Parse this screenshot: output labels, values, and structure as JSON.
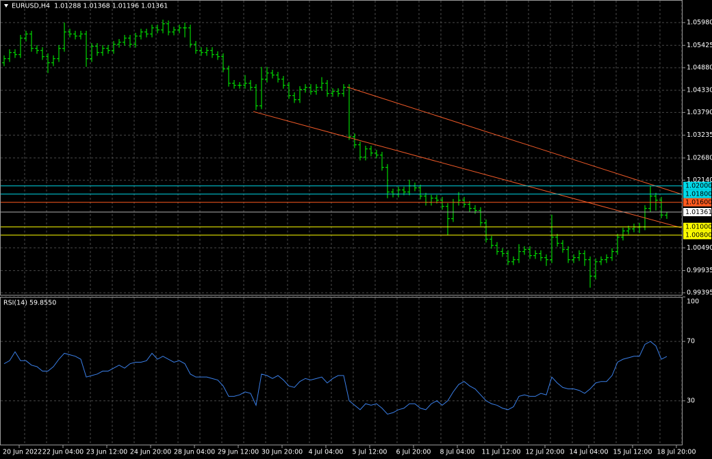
{
  "chart_data": [
    {
      "type": "ohlc",
      "title": "EURUSD,H4  1.01288 1.01368 1.01196 1.01361",
      "color": "#00ff00",
      "ylim": [
        0.99328,
        1.0653
      ],
      "yticks": [
        {
          "value": 1.0598,
          "label": "1.05980"
        },
        {
          "value": 1.05425,
          "label": "1.05425"
        },
        {
          "value": 1.0488,
          "label": "1.04880"
        },
        {
          "value": 1.0433,
          "label": "1.04330"
        },
        {
          "value": 1.0379,
          "label": "1.03790"
        },
        {
          "value": 1.03235,
          "label": "1.03235"
        },
        {
          "value": 1.0268,
          "label": "1.02680"
        },
        {
          "value": 1.0214,
          "label": "1.02140"
        },
        {
          "value": 1.0049,
          "label": "1.00490"
        },
        {
          "value": 0.99935,
          "label": "0.99935"
        },
        {
          "value": 0.99395,
          "label": "0.99395"
        }
      ],
      "grid": true,
      "levels": [
        {
          "value": 1.02,
          "label": "1.02000",
          "color": "#00d8e8"
        },
        {
          "value": 1.018,
          "label": "1.01800",
          "color": "#00d8e8"
        },
        {
          "value": 1.016,
          "label": "1.01600",
          "color": "#ff5a1f"
        },
        {
          "value": 1.01361,
          "label": "1.01361",
          "color": "#b0b0b0"
        },
        {
          "value": 1.01,
          "label": "1.01000",
          "color": "#ffff00"
        },
        {
          "value": 1.008,
          "label": "1.00800",
          "color": "#ffff00"
        }
      ],
      "trendlines": [
        {
          "x": [
            45.5,
            123.6
          ],
          "y": [
            1.0381,
            1.0098
          ],
          "color": "#f05a28"
        },
        {
          "x": [
            62.6,
            123.6
          ],
          "y": [
            1.0441,
            1.018
          ],
          "color": "#f05a28"
        }
      ],
      "bars": [
        [
          1.05,
          1.0518,
          1.0492,
          1.051
        ],
        [
          1.051,
          1.0533,
          1.0502,
          1.0525
        ],
        [
          1.0525,
          1.0533,
          1.0512,
          1.052
        ],
        [
          1.052,
          1.0568,
          1.0512,
          1.056
        ],
        [
          1.056,
          1.0578,
          1.0552,
          1.057
        ],
        [
          1.057,
          1.0578,
          1.0527,
          1.0535
        ],
        [
          1.0535,
          1.0543,
          1.0522,
          1.053
        ],
        [
          1.053,
          1.0538,
          1.0507,
          1.0515
        ],
        [
          1.0515,
          1.0523,
          1.0475,
          1.05
        ],
        [
          1.05,
          1.0518,
          1.0492,
          1.051
        ],
        [
          1.051,
          1.0543,
          1.0502,
          1.0535
        ],
        [
          1.0535,
          1.0598,
          1.0527,
          1.0575
        ],
        [
          1.0575,
          1.0583,
          1.0562,
          1.057
        ],
        [
          1.057,
          1.0578,
          1.0557,
          1.0565
        ],
        [
          1.0565,
          1.0578,
          1.0557,
          1.057
        ],
        [
          1.057,
          1.0578,
          1.049,
          1.051
        ],
        [
          1.051,
          1.0548,
          1.0502,
          1.054
        ],
        [
          1.054,
          1.0548,
          1.0517,
          1.0525
        ],
        [
          1.0525,
          1.0543,
          1.0517,
          1.0535
        ],
        [
          1.0535,
          1.0543,
          1.0522,
          1.053
        ],
        [
          1.053,
          1.0553,
          1.0522,
          1.0545
        ],
        [
          1.0545,
          1.0558,
          1.0537,
          1.055
        ],
        [
          1.055,
          1.0568,
          1.0542,
          1.056
        ],
        [
          1.056,
          1.0568,
          1.0537,
          1.0545
        ],
        [
          1.0545,
          1.0573,
          1.0537,
          1.0565
        ],
        [
          1.0565,
          1.0583,
          1.0557,
          1.0575
        ],
        [
          1.0575,
          1.0583,
          1.0562,
          1.057
        ],
        [
          1.057,
          1.0593,
          1.0562,
          1.0585
        ],
        [
          1.0585,
          1.0593,
          1.0572,
          1.058
        ],
        [
          1.058,
          1.0605,
          1.0572,
          1.0595
        ],
        [
          1.0595,
          1.0603,
          1.0567,
          1.0575
        ],
        [
          1.0575,
          1.0588,
          1.0567,
          1.058
        ],
        [
          1.058,
          1.0593,
          1.0572,
          1.0585
        ],
        [
          1.0585,
          1.0598,
          1.0562,
          1.0585
        ],
        [
          1.0585,
          1.0593,
          1.0537,
          1.0545
        ],
        [
          1.0545,
          1.0553,
          1.0522,
          1.053
        ],
        [
          1.053,
          1.0538,
          1.0517,
          1.0525
        ],
        [
          1.0525,
          1.0538,
          1.0517,
          1.053
        ],
        [
          1.053,
          1.0538,
          1.0512,
          1.052
        ],
        [
          1.052,
          1.0528,
          1.0507,
          1.0515
        ],
        [
          1.0515,
          1.0523,
          1.0477,
          1.0485
        ],
        [
          1.0485,
          1.0493,
          1.0442,
          1.045
        ],
        [
          1.045,
          1.0458,
          1.0437,
          1.0445
        ],
        [
          1.0445,
          1.0453,
          1.0437,
          1.0445
        ],
        [
          1.0445,
          1.047,
          1.0437,
          1.045
        ],
        [
          1.045,
          1.0458,
          1.0432,
          1.044
        ],
        [
          1.044,
          1.0448,
          1.0385,
          1.0395
        ],
        [
          1.0395,
          1.049,
          1.0387,
          1.046
        ],
        [
          1.046,
          1.049,
          1.0452,
          1.0475
        ],
        [
          1.0475,
          1.0483,
          1.0462,
          1.047
        ],
        [
          1.047,
          1.0478,
          1.0452,
          1.046
        ],
        [
          1.046,
          1.0468,
          1.0437,
          1.0445
        ],
        [
          1.0445,
          1.0453,
          1.0412,
          1.042
        ],
        [
          1.042,
          1.0428,
          1.0402,
          1.041
        ],
        [
          1.041,
          1.0443,
          1.0402,
          1.0435
        ],
        [
          1.0435,
          1.0448,
          1.0427,
          1.044
        ],
        [
          1.044,
          1.0448,
          1.0422,
          1.043
        ],
        [
          1.043,
          1.0448,
          1.0422,
          1.044
        ],
        [
          1.044,
          1.0465,
          1.0432,
          1.045
        ],
        [
          1.045,
          1.0458,
          1.0417,
          1.0425
        ],
        [
          1.0425,
          1.0438,
          1.0417,
          1.043
        ],
        [
          1.043,
          1.0438,
          1.0417,
          1.0425
        ],
        [
          1.0425,
          1.0448,
          1.0417,
          1.044
        ],
        [
          1.044,
          1.0448,
          1.0312,
          1.032
        ],
        [
          1.032,
          1.0328,
          1.0292,
          1.03
        ],
        [
          1.03,
          1.0308,
          1.0262,
          1.027
        ],
        [
          1.027,
          1.0298,
          1.0262,
          1.029
        ],
        [
          1.029,
          1.0298,
          1.0272,
          1.028
        ],
        [
          1.028,
          1.0288,
          1.0267,
          1.0275
        ],
        [
          1.0275,
          1.0283,
          1.0237,
          1.0245
        ],
        [
          1.0245,
          1.0253,
          1.017,
          1.0185
        ],
        [
          1.0185,
          1.0193,
          1.0172,
          1.018
        ],
        [
          1.018,
          1.0198,
          1.0172,
          1.019
        ],
        [
          1.019,
          1.0198,
          1.0177,
          1.0185
        ],
        [
          1.0185,
          1.0215,
          1.0177,
          1.02
        ],
        [
          1.02,
          1.0208,
          1.0187,
          1.0195
        ],
        [
          1.0195,
          1.0203,
          1.0167,
          1.0175
        ],
        [
          1.0175,
          1.0183,
          1.0152,
          1.016
        ],
        [
          1.016,
          1.0178,
          1.0152,
          1.017
        ],
        [
          1.017,
          1.0178,
          1.0157,
          1.0165
        ],
        [
          1.0165,
          1.0173,
          1.0142,
          1.015
        ],
        [
          1.015,
          1.0158,
          1.008,
          1.012
        ],
        [
          1.012,
          1.0168,
          1.0112,
          1.016
        ],
        [
          1.016,
          1.0185,
          1.0152,
          1.0165
        ],
        [
          1.0165,
          1.0173,
          1.0147,
          1.0155
        ],
        [
          1.0155,
          1.0163,
          1.0137,
          1.0145
        ],
        [
          1.0145,
          1.0153,
          1.0132,
          1.014
        ],
        [
          1.014,
          1.0148,
          1.0102,
          1.011
        ],
        [
          1.011,
          1.0118,
          1.0062,
          1.007
        ],
        [
          1.007,
          1.0078,
          1.0047,
          1.0055
        ],
        [
          1.0055,
          1.0063,
          1.0032,
          1.004
        ],
        [
          1.004,
          1.0048,
          1.0027,
          1.0035
        ],
        [
          1.0035,
          1.0043,
          1.0007,
          1.0015
        ],
        [
          1.0015,
          1.0028,
          1.0007,
          1.002
        ],
        [
          1.002,
          1.0058,
          1.0012,
          1.004
        ],
        [
          1.004,
          1.0053,
          1.0032,
          1.0045
        ],
        [
          1.0045,
          1.0053,
          1.0022,
          1.003
        ],
        [
          1.003,
          1.0043,
          1.0022,
          1.0035
        ],
        [
          1.0035,
          1.0043,
          1.0017,
          1.0025
        ],
        [
          1.0025,
          1.0033,
          1.0005,
          1.002
        ],
        [
          1.002,
          1.013,
          1.0012,
          1.0075
        ],
        [
          1.0075,
          1.0083,
          1.0052,
          1.006
        ],
        [
          1.006,
          1.0068,
          1.0037,
          1.0045
        ],
        [
          1.0045,
          1.0053,
          1.0012,
          1.002
        ],
        [
          1.002,
          1.0033,
          1.0012,
          1.0025
        ],
        [
          1.0025,
          1.0043,
          1.0017,
          1.0035
        ],
        [
          1.0035,
          1.0043,
          1.0005,
          1.002
        ],
        [
          1.002,
          1.0028,
          0.9952,
          0.998
        ],
        [
          0.998,
          1.0023,
          0.9972,
          1.0015
        ],
        [
          1.0015,
          1.0028,
          1.0007,
          1.002
        ],
        [
          1.002,
          1.0033,
          1.0012,
          1.0025
        ],
        [
          1.0025,
          1.0048,
          1.0017,
          1.004
        ],
        [
          1.004,
          1.0083,
          1.0032,
          1.0075
        ],
        [
          1.0075,
          1.0098,
          1.0067,
          1.009
        ],
        [
          1.009,
          1.0103,
          1.0082,
          1.0095
        ],
        [
          1.0095,
          1.0108,
          1.0087,
          1.01
        ],
        [
          1.01,
          1.011,
          1.0085,
          1.01
        ],
        [
          1.01,
          1.0153,
          1.0092,
          1.0145
        ],
        [
          1.0145,
          1.02,
          1.0137,
          1.0175
        ],
        [
          1.0175,
          1.0183,
          1.014,
          1.0165
        ],
        [
          1.0165,
          1.0173,
          1.0121,
          1.0129
        ],
        [
          1.01288,
          1.01368,
          1.01196,
          1.01361
        ]
      ]
    },
    {
      "type": "line",
      "title": "RSI(14) 59.8550",
      "ylim": [
        0,
        100
      ],
      "yticks": [
        100,
        70,
        30
      ],
      "grid": true,
      "series": [
        {
          "name": "RSI(14)",
          "color": "#3a7fe8",
          "values": [
            55,
            57,
            63,
            57,
            57,
            54,
            53,
            50,
            50,
            53,
            58,
            62,
            61,
            60,
            58,
            46,
            47,
            48,
            50,
            50,
            52,
            54,
            52,
            55,
            56,
            56,
            57,
            62,
            58,
            60,
            58,
            56,
            57,
            55,
            48,
            46,
            46,
            46,
            45,
            44,
            40,
            33,
            33,
            34,
            36,
            35,
            27,
            48,
            47,
            45,
            47,
            44,
            40,
            39,
            43,
            45,
            44,
            45,
            46,
            42,
            45,
            47,
            47,
            30,
            27,
            24,
            28,
            27,
            28,
            25,
            21,
            22,
            24,
            25,
            28,
            28,
            25,
            24,
            28,
            30,
            27,
            30,
            36,
            41,
            43,
            40,
            38,
            34,
            30,
            28,
            27,
            25,
            24,
            26,
            33,
            34,
            33,
            33,
            35,
            34,
            46,
            42,
            39,
            38,
            38,
            37,
            35,
            38,
            42,
            43,
            43,
            47,
            56,
            58,
            59,
            60,
            60,
            68,
            70,
            67,
            58,
            59.855
          ]
        }
      ],
      "xlabels": [
        "20 Jun 2022",
        "22 Jun 04:00",
        "23 Jun 12:00",
        "24 Jun 20:00",
        "28 Jun 04:00",
        "29 Jun 12:00",
        "30 Jun 20:00",
        "4 Jul 04:00",
        "5 Jul 12:00",
        "6 Jul 20:00",
        "8 Jul 04:00",
        "11 Jul 12:00",
        "12 Jul 20:00",
        "14 Jul 04:00",
        "15 Jul 12:00",
        "18 Jul 20:00"
      ]
    }
  ]
}
